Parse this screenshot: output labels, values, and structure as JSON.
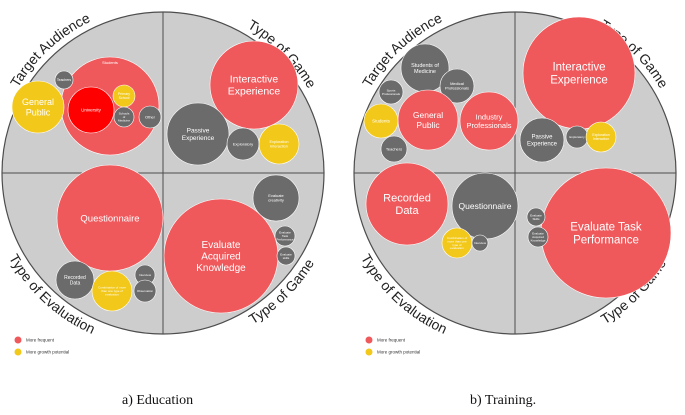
{
  "colors": {
    "frequent": "#f0595c",
    "growth": "#f2c81a",
    "grey_bubble": "#6b6b6b",
    "disk": "#cdcdcd",
    "disk_outline": "#4d4d4d",
    "highlight_red": "#ff0000"
  },
  "diagrams": [
    {
      "caption": "a) Education",
      "quadrant_labels": {
        "top_left": "Target Audience",
        "top_right": "Type of Game",
        "bottom_left": "Type of Evaluation",
        "bottom_right": "Type of Game"
      },
      "legend": [
        {
          "label": "More frequent",
          "category": "frequent"
        },
        {
          "label": "More growth potential",
          "category": "growth"
        }
      ],
      "bubbles": [
        {
          "label": "Students",
          "category": "frequent",
          "size": "large"
        },
        {
          "label": "University",
          "category": "highlight",
          "size": "medium"
        },
        {
          "label": "Primary School",
          "category": "growth",
          "size": "tiny"
        },
        {
          "label": "Schools of Medicine",
          "category": "grey",
          "size": "tiny"
        },
        {
          "label": "Other",
          "category": "grey",
          "size": "tiny"
        },
        {
          "label": "Teachers",
          "category": "grey",
          "size": "tiny"
        },
        {
          "label": "General Public",
          "category": "growth",
          "size": "medium"
        },
        {
          "label": "Interactive Experience",
          "category": "frequent",
          "size": "large"
        },
        {
          "label": "Passive Experience",
          "category": "grey",
          "size": "medium"
        },
        {
          "label": "Exploratory",
          "category": "grey",
          "size": "small"
        },
        {
          "label": "Exploration Interaction",
          "category": "growth",
          "size": "small"
        },
        {
          "label": "Questionnaire",
          "category": "frequent",
          "size": "large"
        },
        {
          "label": "Recorded Data",
          "category": "grey",
          "size": "small"
        },
        {
          "label": "Combination of more than one type of evaluation",
          "category": "growth",
          "size": "small"
        },
        {
          "label": "Interview",
          "category": "grey",
          "size": "tiny"
        },
        {
          "label": "Observation",
          "category": "grey",
          "size": "tiny"
        },
        {
          "label": "Evaluate Acquired Knowledge",
          "category": "frequent",
          "size": "large"
        },
        {
          "label": "Evaluate creativity",
          "category": "grey",
          "size": "medium"
        },
        {
          "label": "Evaluate Task Performance",
          "category": "grey",
          "size": "tiny"
        },
        {
          "label": "Evaluate skills",
          "category": "grey",
          "size": "tiny"
        }
      ]
    },
    {
      "caption": "b) Training.",
      "quadrant_labels": {
        "top_left": "Target Audience",
        "top_right": "Type of Game",
        "bottom_left": "Type of Evaluation",
        "bottom_right": "Type of Game"
      },
      "legend": [
        {
          "label": "More frequent",
          "category": "frequent"
        },
        {
          "label": "More growth potential",
          "category": "growth"
        }
      ],
      "bubbles": [
        {
          "label": "Students of Medicine",
          "category": "grey",
          "size": "medium"
        },
        {
          "label": "Medical Professionals",
          "category": "grey",
          "size": "small"
        },
        {
          "label": "Sports Professionals",
          "category": "grey",
          "size": "tiny"
        },
        {
          "label": "General Public",
          "category": "frequent",
          "size": "medium"
        },
        {
          "label": "Industry Professionals",
          "category": "frequent",
          "size": "medium"
        },
        {
          "label": "Students",
          "category": "growth",
          "size": "small"
        },
        {
          "label": "Teachers",
          "category": "grey",
          "size": "small"
        },
        {
          "label": "Interactive Experience",
          "category": "frequent",
          "size": "large"
        },
        {
          "label": "Passive Experience",
          "category": "grey",
          "size": "medium"
        },
        {
          "label": "Exploratory",
          "category": "grey",
          "size": "tiny"
        },
        {
          "label": "Exploration Interaction",
          "category": "growth",
          "size": "small"
        },
        {
          "label": "Recorded Data",
          "category": "frequent",
          "size": "large"
        },
        {
          "label": "Questionnaire",
          "category": "grey",
          "size": "large"
        },
        {
          "label": "Combination of more than one type of evaluation",
          "category": "growth",
          "size": "small"
        },
        {
          "label": "Interview",
          "category": "grey",
          "size": "tiny"
        },
        {
          "label": "Evaluate Task Performance",
          "category": "frequent",
          "size": "large"
        },
        {
          "label": "Evaluate Skills",
          "category": "grey",
          "size": "tiny"
        },
        {
          "label": "Evaluate Acquired Knowledge",
          "category": "grey",
          "size": "tiny"
        }
      ]
    }
  ]
}
